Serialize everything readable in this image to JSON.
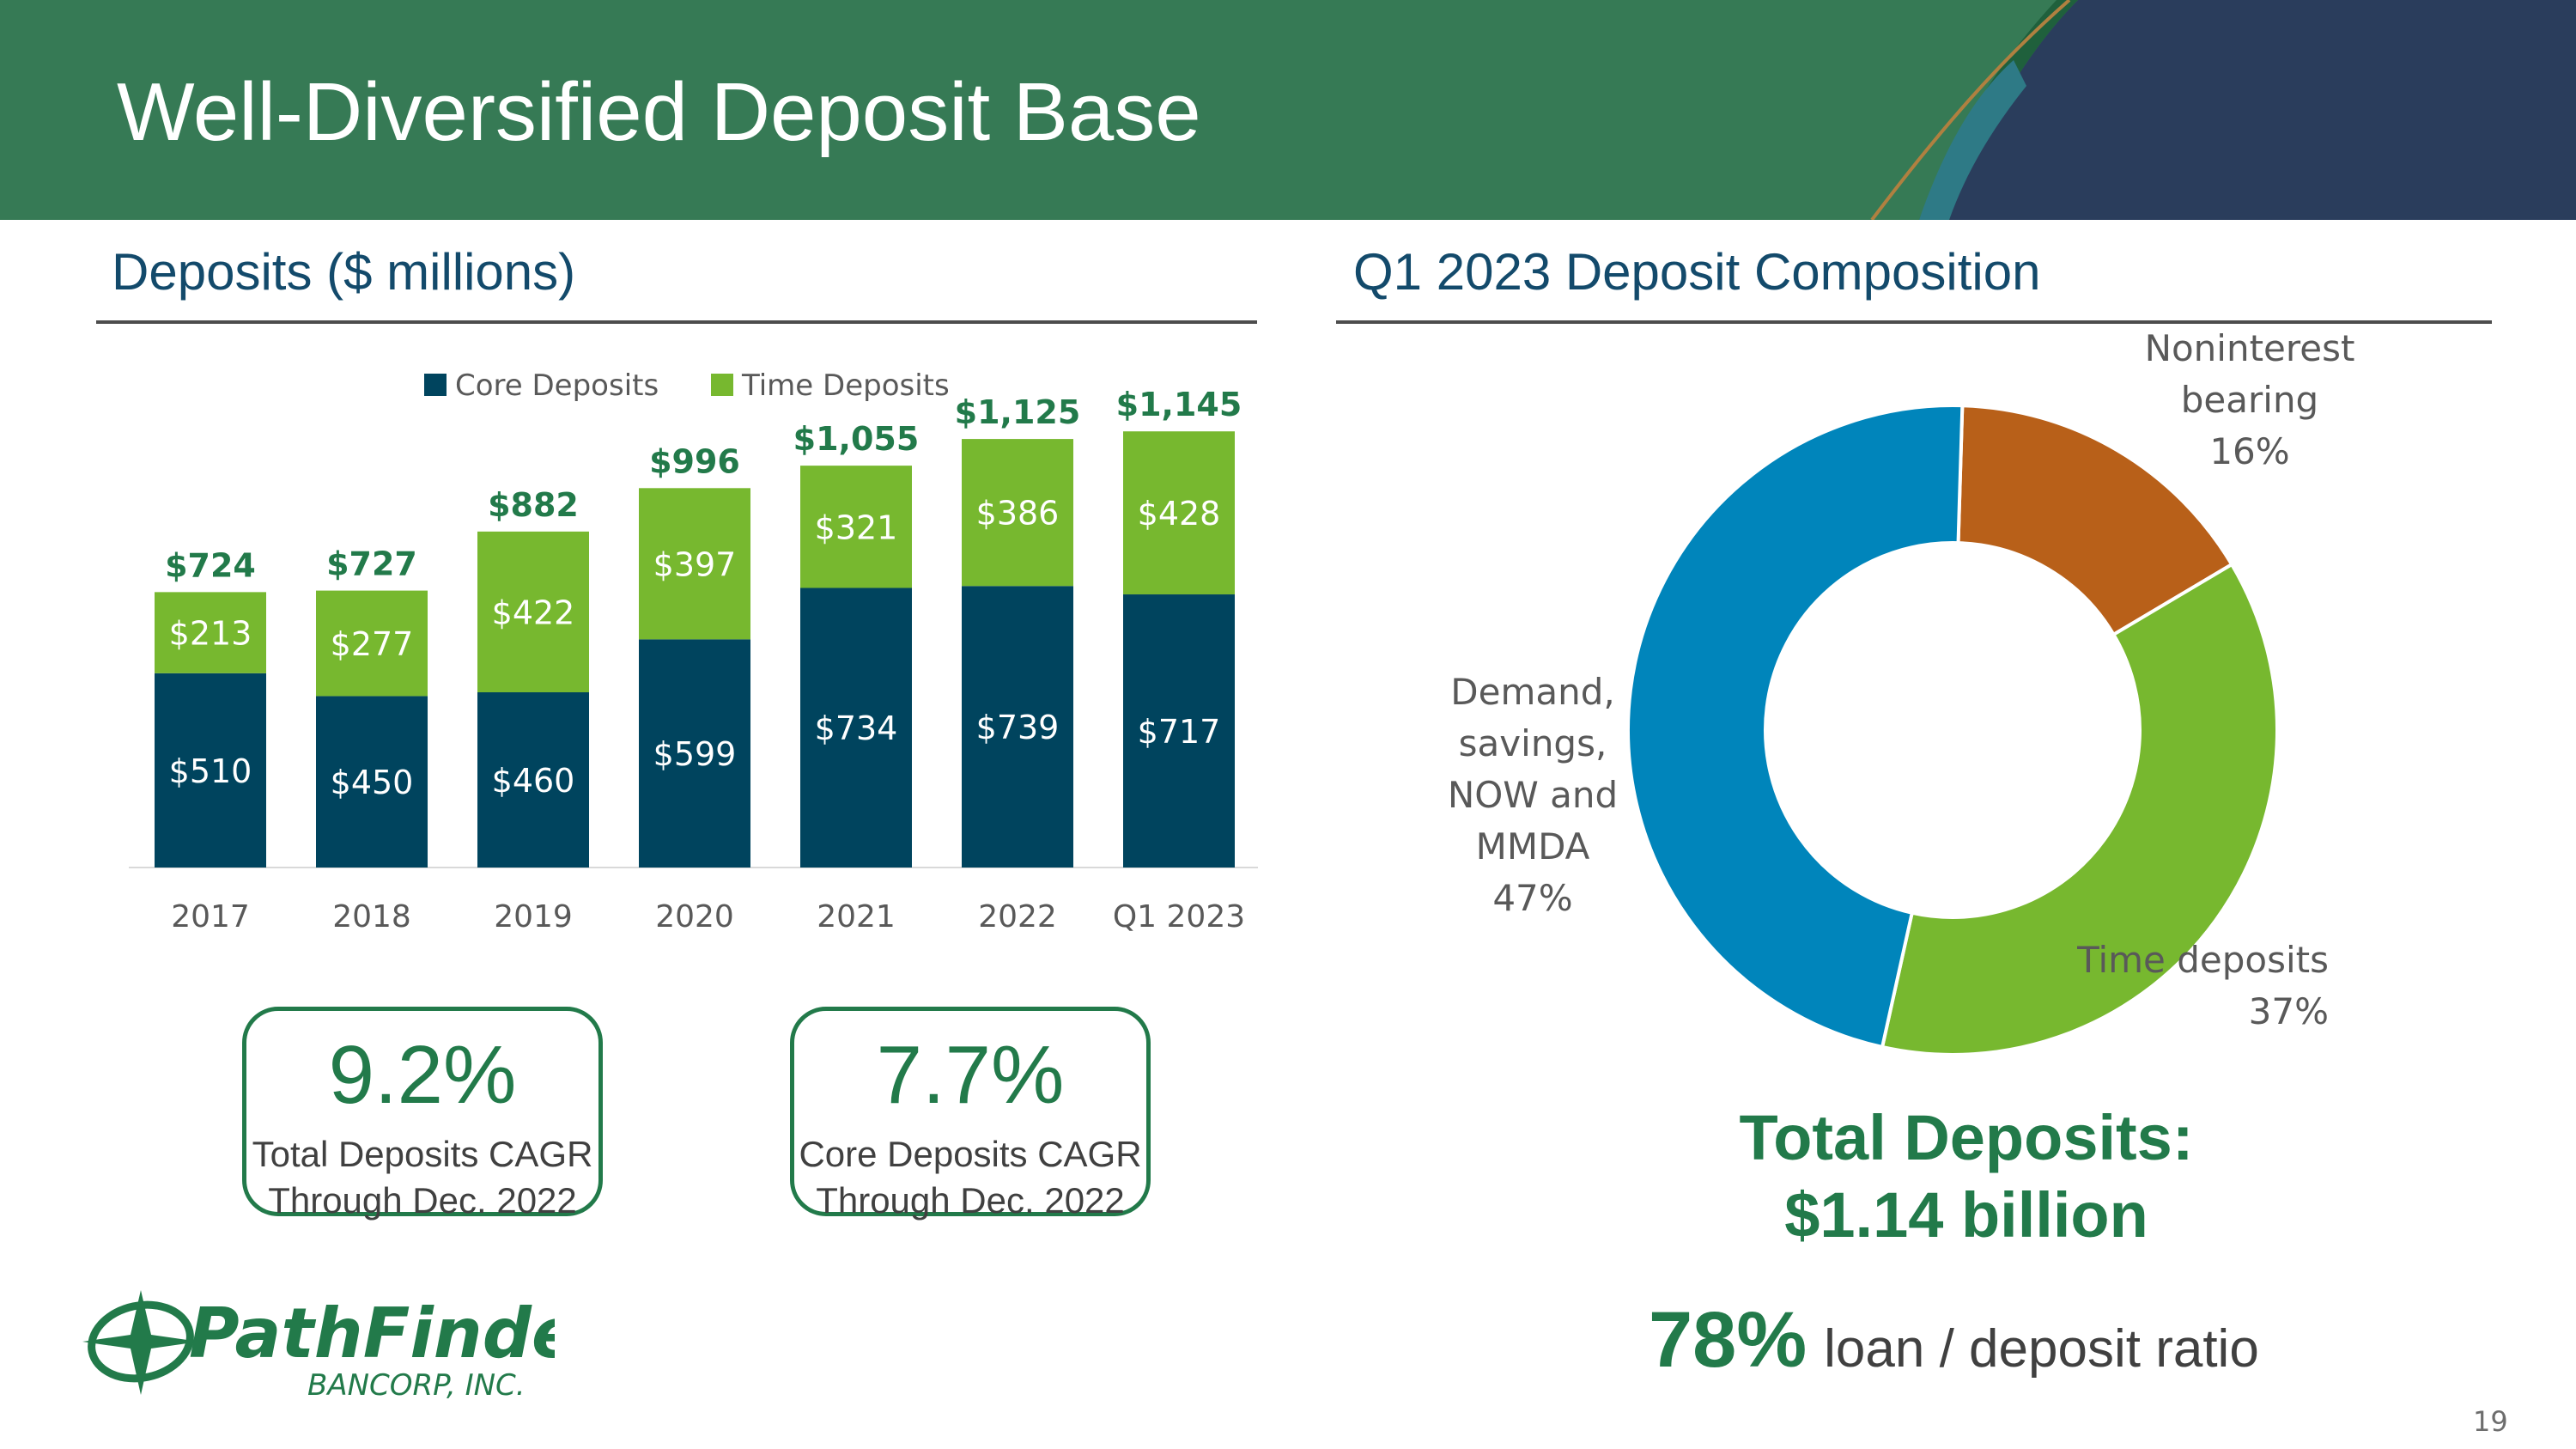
{
  "header": {
    "title": "Well-Diversified Deposit Base"
  },
  "left": {
    "section_title": "Deposits ($ millions)"
  },
  "right": {
    "section_title": "Q1 2023 Deposit Composition"
  },
  "colors": {
    "header_green": "#367a55",
    "header_navy": "#2a3d5c",
    "core": "#00445e",
    "time": "#77b82f",
    "total_label": "#227a4a",
    "demand": "#0085bb",
    "noninterest": "#b86019",
    "time_pie": "#77b82f"
  },
  "chart_data": [
    {
      "type": "bar",
      "stacked": true,
      "categories": [
        "2017",
        "2018",
        "2019",
        "2020",
        "2021",
        "2022",
        "Q1 2023"
      ],
      "series": [
        {
          "name": "Core Deposits",
          "values": [
            510,
            450,
            460,
            599,
            734,
            739,
            717
          ],
          "labels": [
            "$510",
            "$450",
            "$460",
            "$599",
            "$734",
            "$739",
            "$717"
          ]
        },
        {
          "name": "Time Deposits",
          "values": [
            213,
            277,
            422,
            397,
            321,
            386,
            428
          ],
          "labels": [
            "$213",
            "$277",
            "$422",
            "$397",
            "$321",
            "$386",
            "$428"
          ]
        }
      ],
      "totals": [
        "$724",
        "$727",
        "$882",
        "$996",
        "$1,055",
        "$1,125",
        "$1,145"
      ],
      "legend_position": "top",
      "grid": false,
      "ylim": [
        0,
        1150
      ]
    },
    {
      "type": "pie",
      "donut": true,
      "slices": [
        {
          "name": "Noninterest bearing",
          "value": 16,
          "label_lines": [
            "Noninterest",
            "bearing",
            "16%"
          ]
        },
        {
          "name": "Time deposits",
          "value": 37,
          "label_lines": [
            "Time deposits",
            "37%"
          ]
        },
        {
          "name": "Demand, savings, NOW and MMDA",
          "value": 47,
          "label_lines": [
            "Demand,",
            "savings,",
            "NOW and",
            "MMDA",
            "47%"
          ]
        }
      ]
    }
  ],
  "kpis": [
    {
      "value": "9.2%",
      "label_line1": "Total Deposits CAGR",
      "label_line2": "Through Dec. 2022"
    },
    {
      "value": "7.7%",
      "label_line1": "Core Deposits CAGR",
      "label_line2": "Through Dec. 2022"
    }
  ],
  "summary": {
    "total_line1": "Total Deposits:",
    "total_line2": "$1.14 billion",
    "ratio_value": "78%",
    "ratio_text": "loan / deposit ratio"
  },
  "logo": {
    "name": "PathFinder",
    "subtitle": "BANCORP, INC.",
    "icon": "compass-star-icon"
  },
  "page_number": "19"
}
